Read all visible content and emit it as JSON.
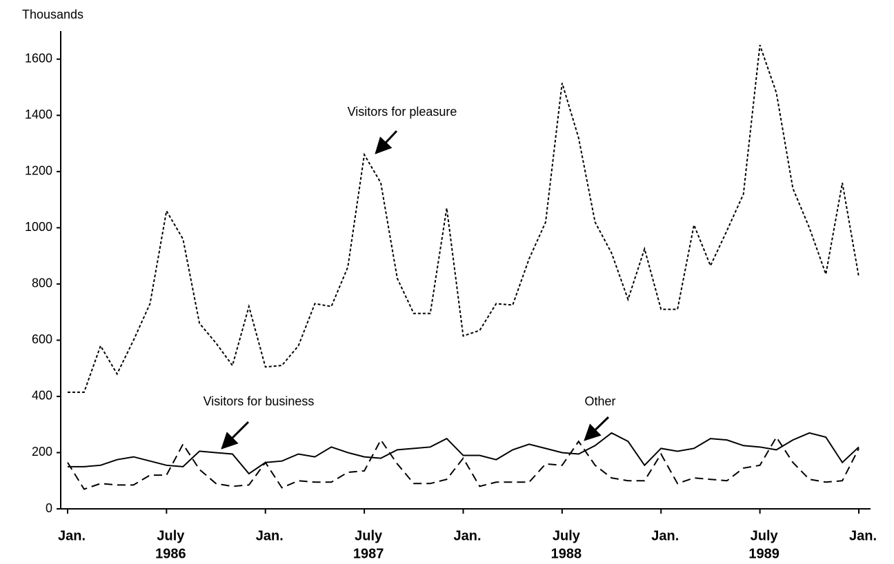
{
  "chart_data": {
    "type": "line",
    "y_label": "Thousands",
    "x": [
      "1986-01",
      "1986-02",
      "1986-03",
      "1986-04",
      "1986-05",
      "1986-06",
      "1986-07",
      "1986-08",
      "1986-09",
      "1986-10",
      "1986-11",
      "1986-12",
      "1987-01",
      "1987-02",
      "1987-03",
      "1987-04",
      "1987-05",
      "1987-06",
      "1987-07",
      "1987-08",
      "1987-09",
      "1987-10",
      "1987-11",
      "1987-12",
      "1988-01",
      "1988-02",
      "1988-03",
      "1988-04",
      "1988-05",
      "1988-06",
      "1988-07",
      "1988-08",
      "1988-09",
      "1988-10",
      "1988-11",
      "1988-12",
      "1989-01",
      "1989-02",
      "1989-03",
      "1989-04",
      "1989-05",
      "1989-06",
      "1989-07",
      "1989-08",
      "1989-09",
      "1989-10",
      "1989-11",
      "1989-12",
      "1990-01"
    ],
    "series": [
      {
        "name": "Visitors for pleasure",
        "color": "#000000",
        "dash": "dotted",
        "values": [
          415,
          415,
          580,
          480,
          600,
          730,
          1060,
          960,
          660,
          590,
          510,
          720,
          505,
          510,
          580,
          730,
          720,
          860,
          1260,
          1160,
          820,
          695,
          695,
          1070,
          615,
          635,
          730,
          725,
          890,
          1020,
          1515,
          1320,
          1020,
          910,
          745,
          925,
          710,
          710,
          1010,
          865,
          990,
          1120,
          1650,
          1480,
          1140,
          1000,
          835,
          1160,
          825
        ]
      },
      {
        "name": "Visitors for business",
        "color": "#000000",
        "dash": "solid",
        "values": [
          150,
          150,
          155,
          175,
          185,
          170,
          155,
          150,
          205,
          200,
          195,
          125,
          165,
          170,
          195,
          185,
          220,
          200,
          185,
          180,
          210,
          215,
          220,
          250,
          190,
          190,
          175,
          210,
          230,
          215,
          200,
          195,
          225,
          270,
          240,
          155,
          215,
          205,
          215,
          250,
          245,
          225,
          220,
          210,
          245,
          270,
          255,
          165,
          220
        ]
      },
      {
        "name": "Other",
        "color": "#000000",
        "dash": "dashed",
        "values": [
          165,
          70,
          90,
          85,
          85,
          120,
          120,
          230,
          140,
          90,
          80,
          85,
          165,
          75,
          100,
          95,
          95,
          130,
          135,
          245,
          160,
          90,
          90,
          105,
          180,
          80,
          95,
          95,
          95,
          160,
          155,
          240,
          155,
          110,
          100,
          100,
          195,
          90,
          110,
          105,
          100,
          145,
          155,
          255,
          165,
          105,
          95,
          100,
          215
        ]
      }
    ],
    "xlim": [
      "1986-01",
      "1990-01"
    ],
    "xticks": [
      {
        "value": "1986-01",
        "label": "Jan."
      },
      {
        "value": "1986-07",
        "label": "July"
      },
      {
        "value": "1987-01",
        "label": "Jan."
      },
      {
        "value": "1987-07",
        "label": "July"
      },
      {
        "value": "1988-01",
        "label": "Jan."
      },
      {
        "value": "1988-07",
        "label": "July"
      },
      {
        "value": "1989-01",
        "label": "Jan."
      },
      {
        "value": "1989-07",
        "label": "July"
      },
      {
        "value": "1990-01",
        "label": "Jan."
      }
    ],
    "year_labels": [
      {
        "value": "1986-07",
        "label": "1986"
      },
      {
        "value": "1987-07",
        "label": "1987"
      },
      {
        "value": "1988-07",
        "label": "1988"
      },
      {
        "value": "1989-07",
        "label": "1989"
      }
    ],
    "ylim": [
      0,
      1700
    ],
    "yticks": [
      0,
      200,
      400,
      600,
      800,
      1000,
      1200,
      1400,
      1600
    ]
  }
}
